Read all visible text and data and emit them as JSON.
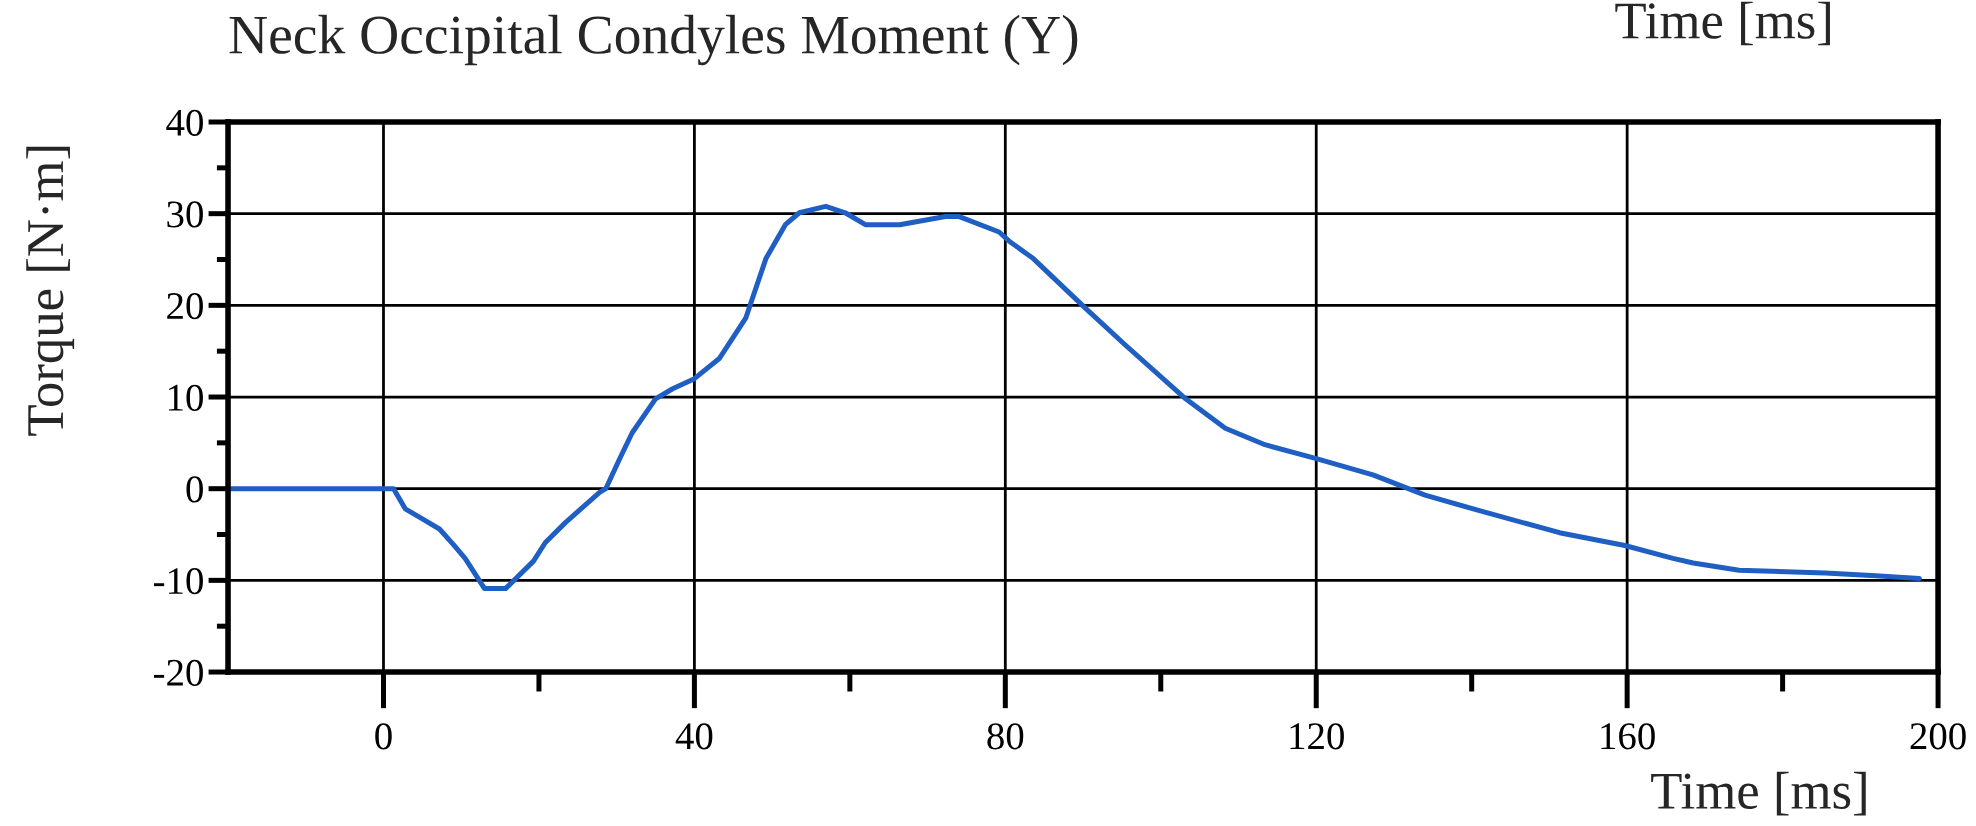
{
  "chart_data": {
    "type": "line",
    "title": "Neck Occipital Condyles Moment (Y)",
    "xlabel": "Time [ms]",
    "ylabel": "Torque [N·m]",
    "annotations": [
      "Time [ms]"
    ],
    "x": [
      -20,
      1.3,
      2.8,
      5,
      7.2,
      9,
      10.5,
      13,
      15.7,
      19.3,
      20.8,
      23.4,
      27.8,
      28.6,
      30.4,
      32,
      35,
      37.2,
      40,
      43.2,
      46.6,
      49.2,
      51.7,
      53.5,
      56.9,
      59.4,
      62,
      66.4,
      72.3,
      74,
      79.2,
      80.5,
      83.6,
      90.3,
      95.4,
      103.2,
      108.3,
      113.4,
      119.9,
      127.3,
      134,
      141,
      151.3,
      159.7,
      165.9,
      168.5,
      174.4,
      185.5,
      192,
      197.6
    ],
    "series": [
      {
        "color": "#1f5fc4",
        "values": [
          0,
          0,
          -2.2,
          -3.3,
          -4.4,
          -6.1,
          -7.6,
          -10.9,
          -10.9,
          -7.9,
          -5.9,
          -3.7,
          -0.4,
          0,
          3.3,
          6.1,
          9.8,
          10.9,
          12,
          14.2,
          18.6,
          25.1,
          28.8,
          30.1,
          30.8,
          30.1,
          28.8,
          28.8,
          29.7,
          29.7,
          28,
          27,
          25.1,
          19.7,
          15.7,
          9.8,
          6.6,
          4.8,
          3.3,
          1.5,
          -0.7,
          -2.4,
          -4.8,
          -6.2,
          -7.6,
          -8.1,
          -8.9,
          -9.2,
          -9.5,
          -9.8
        ]
      }
    ],
    "xlim": [
      -20,
      200
    ],
    "ylim": [
      -20,
      40
    ],
    "xticks": [
      0,
      {
        "value": 20,
        "label": null
      },
      40,
      {
        "value": 60,
        "label": null
      },
      80,
      {
        "value": 100,
        "label": null
      },
      120,
      {
        "value": 140,
        "label": null
      },
      160,
      {
        "value": 180,
        "label": null
      },
      200
    ],
    "yticks": [
      -20,
      {
        "value": -15,
        "label": null
      },
      -10,
      {
        "value": -5,
        "label": null
      },
      0,
      {
        "value": 5,
        "label": null
      },
      10,
      {
        "value": 15,
        "label": null
      },
      20,
      {
        "value": 25,
        "label": null
      },
      30,
      {
        "value": 35,
        "label": null
      },
      40
    ],
    "grid": true,
    "line_style": "solid"
  }
}
